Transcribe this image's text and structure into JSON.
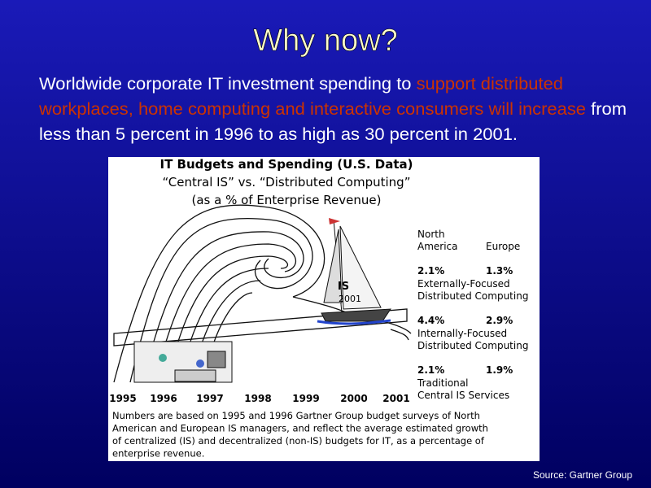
{
  "title": "Why now?",
  "intro": {
    "lines": [
      [
        "Worldwide corporate IT investment spending to ",
        "support distributed"
      ],
      [
        "workplaces, home computing and interactive consumers will increase",
        " from"
      ],
      [
        "less than 5 percent in 1996 to as high as 30 percent in 2001."
      ]
    ]
  },
  "figure": {
    "title_lines": [
      "IT Budgets and Spending (U.S. Data)",
      "“Central IS” vs. “Distributed Computing”",
      "(as a % of Enterprise Revenue)"
    ],
    "illustration_labels": [
      "IS",
      "2001"
    ],
    "years": [
      "1995",
      "1996",
      "1997",
      "1998",
      "1999",
      "2000",
      "2001"
    ],
    "columns": [
      [
        "North",
        "America"
      ],
      [
        "Europe"
      ]
    ],
    "rows": [
      {
        "north_america": "2.1%",
        "europe": "1.3%",
        "label": [
          "Externally-Focused",
          "Distributed Computing"
        ]
      },
      {
        "north_america": "4.4%",
        "europe": "2.9%",
        "label": [
          "Internally-Focused",
          "Distributed Computing"
        ]
      },
      {
        "north_america": "2.1%",
        "europe": "1.9%",
        "label": [
          "Traditional",
          "Central IS Services"
        ]
      }
    ],
    "note_lines": [
      "Numbers are based on 1995 and 1996 Gartner Group budget surveys of North",
      "American and European IS managers, and reflect the average estimated growth",
      "of centralized (IS) and decentralized (non-IS) budgets for IT, as a percentage of",
      "enterprise revenue."
    ]
  },
  "source": "Source: Gartner Group"
}
